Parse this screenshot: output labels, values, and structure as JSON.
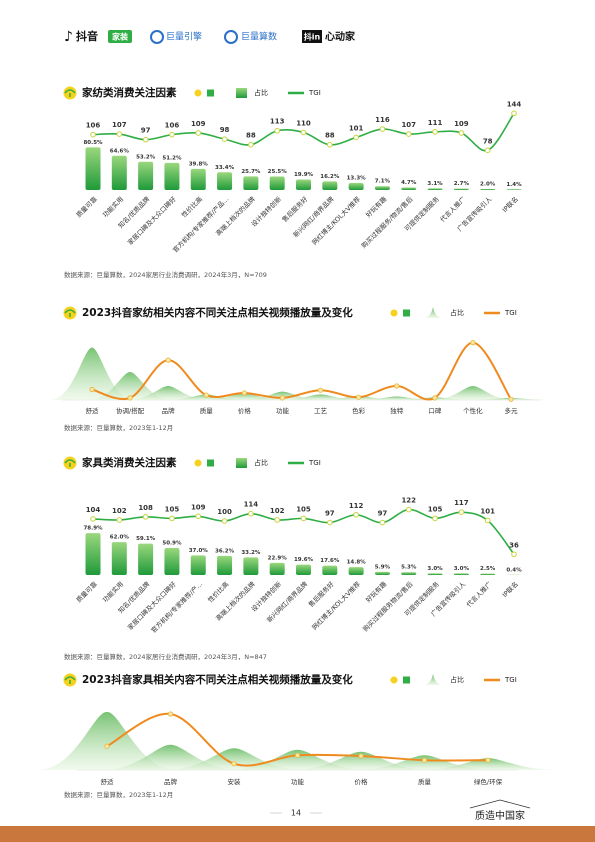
{
  "header": {
    "logos": [
      "抖音",
      "家装",
      "巨量引擎",
      "巨量算数",
      "抖in",
      "心动家"
    ]
  },
  "chart_data": [
    {
      "type": "combo",
      "title": "家纺类消费关注因素",
      "categories": [
        "质量可靠",
        "功能实用",
        "知名/优质品牌",
        "家居口碑及大众口碑好",
        "性价比高",
        "官方机构/专家推荐/产品...",
        "高端上档次的品牌",
        "设计独特创新",
        "售后服务好",
        "新兴网红/商界品牌",
        "网红博主/KOL大V推荐",
        "好玩有趣",
        "购买过程服务/物流/售后",
        "可提供定制服务",
        "代言人推广",
        "广告宣传吸引人",
        "IP联名"
      ],
      "series": [
        {
          "name": "占比",
          "color": "#2fae45",
          "values": [
            80.5,
            64.6,
            53.2,
            51.2,
            39.8,
            33.4,
            25.7,
            25.5,
            19.9,
            16.2,
            13.3,
            7.1,
            4.7,
            3.1,
            2.7,
            2.0,
            1.4
          ],
          "value_labels": [
            "80.5%",
            "64.6%",
            "53.2%",
            "51.2%",
            "39.8%",
            "33.4%",
            "25.7%",
            "25.5%",
            "19.9%",
            "16.2%",
            "13.3%",
            "7.1%",
            "4.7%",
            "3.1%",
            "2.7%",
            "2.0%",
            "1.4%"
          ]
        },
        {
          "name": "TGI",
          "color": "#2fae45",
          "values": [
            106,
            107,
            97,
            106,
            109,
            98,
            88,
            113,
            110,
            88,
            101,
            116,
            107,
            111,
            109,
            78,
            144
          ]
        }
      ],
      "source": "数据来源：巨量算数，2024家居行业消费调研，2024年3月，N=709"
    },
    {
      "type": "area",
      "title": "2023抖音家纺相关内容不同关注点相关视频播放量及变化",
      "categories": [
        "舒适",
        "协调/搭配",
        "品牌",
        "质量",
        "价格",
        "功能",
        "工艺",
        "色彩",
        "独特",
        "口碑",
        "个性化",
        "多元"
      ],
      "series": [
        {
          "name": "占比",
          "color": "#6cc25a",
          "values": [
            75,
            40,
            20,
            8,
            10,
            12,
            8,
            6,
            5,
            4,
            20,
            3
          ]
        },
        {
          "name": "TGI",
          "color": "#ef8a1f",
          "values": [
            15,
            3,
            57,
            7,
            10,
            3,
            14,
            4,
            20,
            3,
            82,
            1
          ]
        }
      ],
      "source": "数据来源：巨量算数，2023年1-12月"
    },
    {
      "type": "combo",
      "title": "家具类消费关注因素",
      "categories": [
        "质量可靠",
        "功能实用",
        "知名/优质品牌",
        "家居口碑及大众口碑好",
        "官方机构/专家推荐/产...",
        "性价比高",
        "高端上档次的品牌",
        "设计独特创新",
        "新兴网红/商界品牌",
        "售后服务好",
        "网红博主/KOL大V推荐",
        "好玩有趣",
        "购买过程服务物流/售后",
        "可提供定制服务",
        "广告宣传吸引人",
        "代言人推广",
        "IP联名"
      ],
      "series": [
        {
          "name": "占比",
          "color": "#2fae45",
          "values": [
            78.9,
            62.0,
            59.1,
            50.9,
            37.0,
            36.2,
            33.2,
            22.9,
            19.6,
            17.6,
            14.8,
            5.9,
            5.3,
            3.0,
            3.0,
            2.5,
            0.4
          ],
          "value_labels": [
            "78.9%",
            "62.0%",
            "59.1%",
            "50.9%",
            "37.0%",
            "36.2%",
            "33.2%",
            "22.9%",
            "19.6%",
            "17.6%",
            "14.8%",
            "5.9%",
            "5.3%",
            "3.0%",
            "3.0%",
            "2.5%",
            "0.4%"
          ]
        },
        {
          "name": "TGI",
          "color": "#2fae45",
          "values": [
            104,
            102,
            108,
            105,
            109,
            100,
            114,
            102,
            105,
            97,
            112,
            97,
            122,
            105,
            117,
            101,
            36
          ]
        }
      ],
      "source": "数据来源：巨量算数，2024家居行业消费调研，2024年3月，N=847"
    },
    {
      "type": "area",
      "title": "2023抖音家具相关内容不同关注点相关视频播放量及变化",
      "categories": [
        "舒适",
        "品牌",
        "安装",
        "功能",
        "价格",
        "质量",
        "绿色/环保"
      ],
      "series": [
        {
          "name": "占比",
          "color": "#6cc25a",
          "values": [
            83,
            36,
            31,
            29,
            26,
            21,
            17
          ]
        },
        {
          "name": "TGI",
          "color": "#ef8a1f",
          "values": [
            34,
            80,
            9,
            21,
            20,
            14,
            14
          ]
        }
      ],
      "source": "数据来源：巨量算数，2023年1-12月"
    }
  ],
  "footer": {
    "page": "14",
    "brand": "质造中国家"
  }
}
